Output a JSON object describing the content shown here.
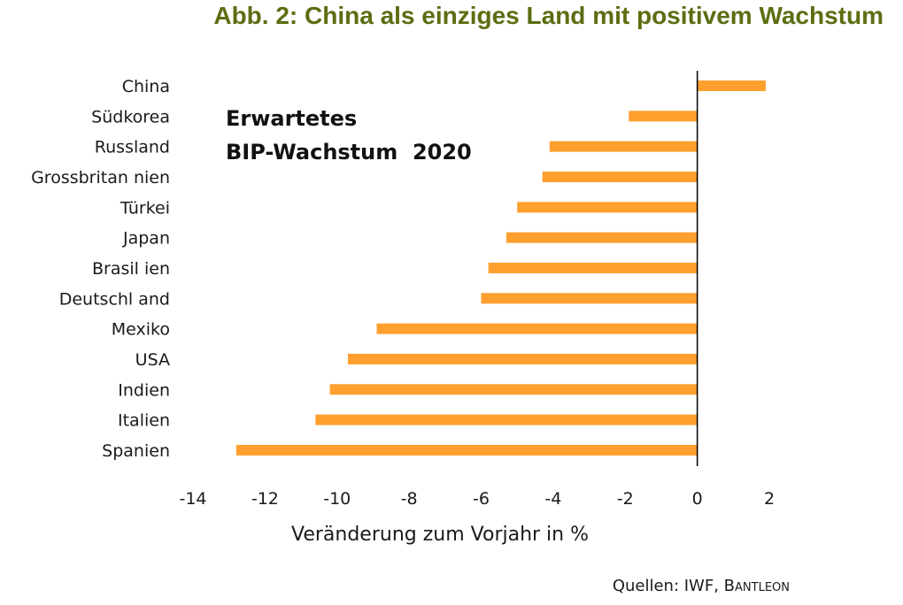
{
  "title": "Abb. 2: China als einziges Land mit positivem Wachstum",
  "source": {
    "prefix": "Quellen: IWF, ",
    "brand_first": "B",
    "brand_rest": "ANTLEON"
  },
  "chart_data": {
    "type": "bar",
    "orientation": "horizontal",
    "categories": [
      "China",
      "Südkorea",
      "Russland",
      "Grossbritannien",
      "Türkei",
      "Japan",
      "Brasilien",
      "Deutschland",
      "Mexiko",
      "USA",
      "Indien",
      "Italien",
      "Spanien"
    ],
    "category_labels": [
      "China",
      "Südkorea",
      "Russland",
      "Grossbritan nien",
      "Türkei",
      "Japan",
      "Brasil ien",
      "Deutschl and",
      "Mexiko",
      "USA",
      "Indien",
      "Italien",
      "Spanien"
    ],
    "values": [
      1.9,
      -1.9,
      -4.1,
      -4.3,
      -5.0,
      -5.3,
      -5.8,
      -6.0,
      -8.9,
      -9.7,
      -10.2,
      -10.6,
      -12.8
    ],
    "annotation": [
      "Erwartetes",
      "BIP-Wachstum  2020"
    ],
    "xlabel": "Veränderung  zum Vorjahr in %",
    "ylabel": "",
    "xlim": [
      -14,
      2
    ],
    "xticks": [
      -14,
      -12,
      -10,
      -8,
      -6,
      -4,
      -2,
      0,
      2
    ],
    "bar_color": "#ff9f2e",
    "grid": false,
    "legend": "none"
  }
}
